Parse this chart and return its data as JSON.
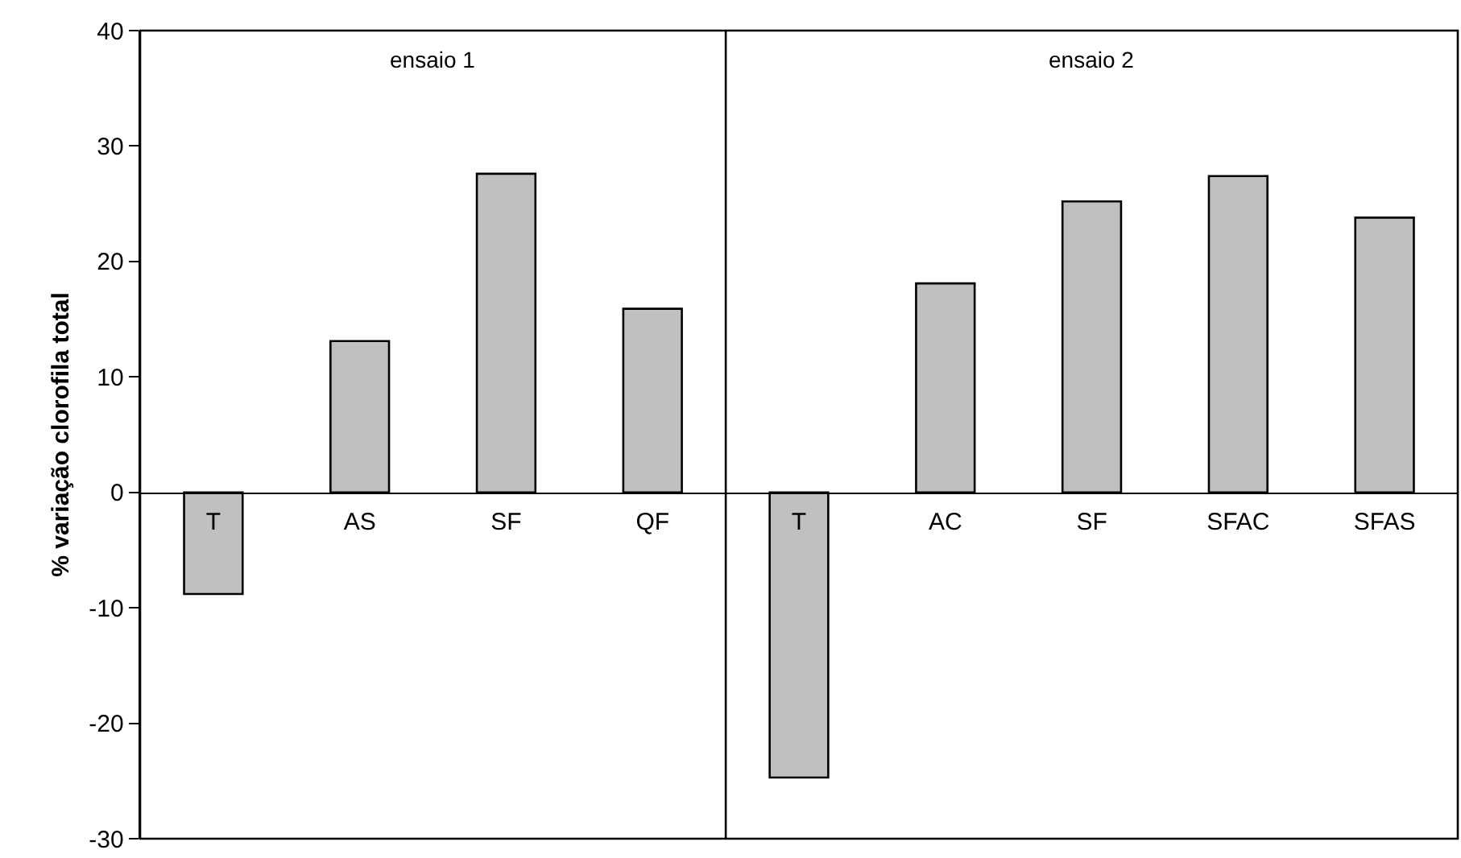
{
  "chart_data": {
    "type": "bar",
    "ylabel": "% variação clorofila total",
    "categories": [
      "T",
      "AS",
      "SF",
      "QF",
      "T",
      "AC",
      "SF",
      "SFAC",
      "SFAS"
    ],
    "values": [
      -8.8,
      13.1,
      27.6,
      15.9,
      -24.7,
      18.1,
      25.2,
      27.4,
      23.8
    ],
    "color": "#c0c0c0",
    "ylim": [
      -30,
      40
    ],
    "yticks": [
      -30,
      -20,
      -10,
      0,
      10,
      20,
      30,
      40
    ],
    "annotations": [
      "ensaio 1",
      "ensaio 2"
    ],
    "grid": false
  }
}
